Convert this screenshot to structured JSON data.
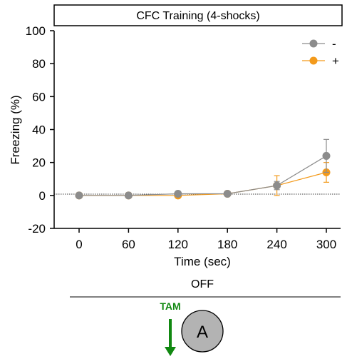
{
  "chart_data": {
    "type": "line",
    "title": "CFC Training (4-shocks)",
    "xlabel": "Time (sec)",
    "ylabel": "Freezing (%)",
    "x": [
      0,
      60,
      120,
      180,
      240,
      300
    ],
    "xticks": [
      "0",
      "60",
      "120",
      "180",
      "240",
      "300"
    ],
    "yticks": [
      "-20",
      "0",
      "20",
      "40",
      "60",
      "80",
      "100"
    ],
    "ylim": [
      -20,
      100
    ],
    "zero_reference_line": true,
    "grid": false,
    "legend_position": "top-right",
    "series": [
      {
        "name": "-",
        "color": "#8c8c8c",
        "values": [
          0,
          0,
          1,
          1,
          6,
          24
        ],
        "errors": [
          0.5,
          0.5,
          0.8,
          0.6,
          2.5,
          10
        ]
      },
      {
        "name": "+",
        "color": "#f39a1b",
        "values": [
          0,
          0,
          0,
          1,
          6,
          14
        ],
        "errors": [
          0.5,
          0.5,
          0.6,
          0.6,
          6,
          6
        ]
      }
    ]
  },
  "annotations": {
    "condition_label": "OFF",
    "arrow_label": "TAM",
    "arrow_color": "#118811",
    "circle_label": "A",
    "circle_fill": "#b3b3b3"
  }
}
